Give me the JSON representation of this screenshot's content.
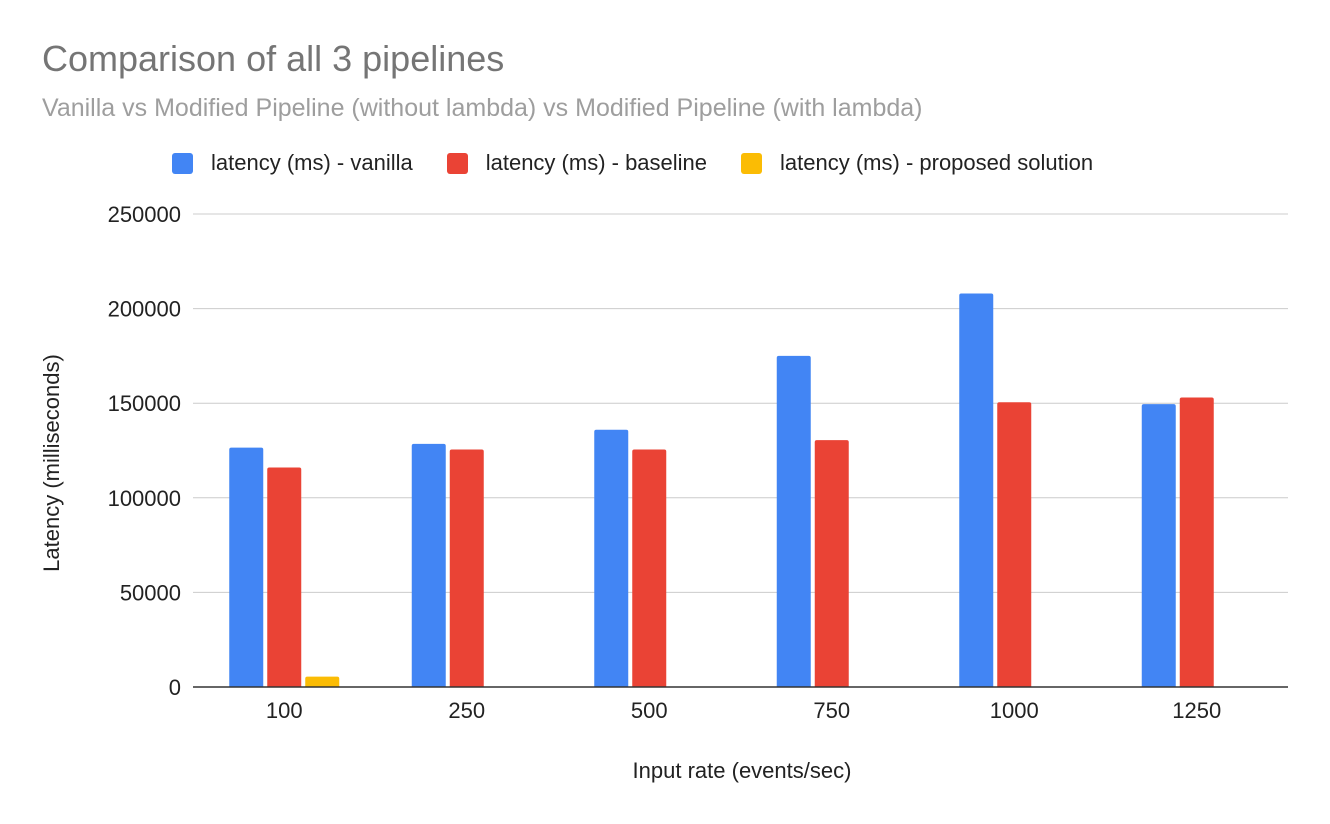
{
  "chart_data": {
    "type": "bar",
    "title": "Comparison of all 3 pipelines",
    "subtitle": "Vanilla vs Modified Pipeline (without lambda) vs Modified Pipeline (with lambda)",
    "xlabel": "Input rate (events/sec)",
    "ylabel": "Latency (milliseconds)",
    "categories": [
      "100",
      "250",
      "500",
      "750",
      "1000",
      "1250"
    ],
    "ylim": [
      0,
      250000
    ],
    "yticks": [
      "0",
      "50000",
      "100000",
      "150000",
      "200000",
      "250000"
    ],
    "grid": true,
    "legend_position": "top",
    "series": [
      {
        "name": "latency (ms) - vanilla",
        "color": "#4285f4",
        "values": [
          126500,
          128500,
          136000,
          175000,
          208000,
          149500
        ]
      },
      {
        "name": "latency (ms) - baseline",
        "color": "#ea4335",
        "values": [
          116000,
          125500,
          125500,
          130500,
          150500,
          153000
        ]
      },
      {
        "name": "latency (ms) - proposed solution",
        "color": "#fbbc04",
        "values": [
          5500,
          null,
          null,
          null,
          null,
          null
        ]
      }
    ]
  }
}
